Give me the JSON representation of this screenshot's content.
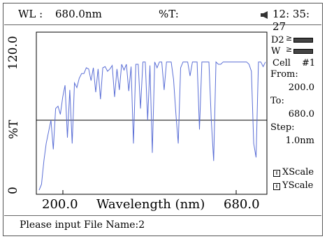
{
  "header": {
    "wl_label": "WL :",
    "wl_value": "680.0nm",
    "t_label": "%T:",
    "speaker_icon": "speaker-icon",
    "clock": "12: 35: 27"
  },
  "sidebar": {
    "d2_label": "D2",
    "w_label": "W",
    "cell_label": "Cell",
    "cell_value": "#1",
    "from_label": "From:",
    "from_value": "200.0",
    "to_label": "To:",
    "to_value": "680.0",
    "step_label": "Step:",
    "step_value": "1.0nm",
    "xscale_label": "XScale",
    "yscale_label": "YScale"
  },
  "footer": {
    "prompt": "Please input File Name:2"
  },
  "chart_data": {
    "type": "line",
    "xlabel": "Wavelength (nm)",
    "ylabel": "%T",
    "xlim": [
      200.0,
      680.0
    ],
    "ylim": [
      0,
      120.0
    ],
    "x_tick_labels": [
      "200.0",
      "680.0"
    ],
    "y_tick_labels": [
      "0",
      "120.0"
    ],
    "series_color": "#5b6fd6",
    "reference_line_y": 60,
    "series": [
      {
        "x": [
          200,
          205,
          210,
          215,
          220,
          225,
          230,
          235,
          240,
          245,
          250,
          255,
          260,
          265,
          270,
          275,
          280,
          285,
          290,
          295,
          300,
          305,
          310,
          315,
          320,
          325,
          330,
          335,
          340,
          345,
          350,
          355,
          360,
          365,
          370,
          375,
          380,
          385,
          390,
          395,
          400,
          405,
          410,
          415,
          420,
          425,
          430,
          435,
          440,
          445,
          450,
          455,
          460,
          465,
          470,
          475,
          480,
          485,
          490,
          495,
          500,
          505,
          510,
          515,
          520,
          525,
          530,
          535,
          540,
          545,
          550,
          555,
          560,
          565,
          570,
          575,
          580,
          585,
          590,
          595,
          600,
          605,
          610,
          615,
          620,
          625,
          630,
          635,
          640,
          645,
          650,
          655,
          660,
          665,
          670,
          675,
          680
        ],
        "y": [
          0,
          5,
          25,
          40,
          50,
          60,
          35,
          70,
          72,
          65,
          80,
          90,
          45,
          86,
          40,
          92,
          88,
          96,
          100,
          100,
          105,
          104,
          94,
          105,
          84,
          104,
          78,
          105,
          106,
          102,
          104,
          107,
          80,
          104,
          86,
          108,
          103,
          108,
          85,
          106,
          40,
          108,
          108,
          70,
          110,
          110,
          60,
          107,
          32,
          110,
          105,
          110,
          110,
          86,
          110,
          110,
          110,
          95,
          65,
          40,
          105,
          110,
          110,
          110,
          98,
          110,
          110,
          110,
          52,
          110,
          110,
          110,
          110,
          60,
          25,
          110,
          108,
          108,
          110,
          110,
          110,
          110,
          110,
          110,
          110,
          110,
          110,
          110,
          110,
          108,
          102,
          40,
          28,
          110,
          110,
          106,
          110
        ]
      }
    ]
  }
}
